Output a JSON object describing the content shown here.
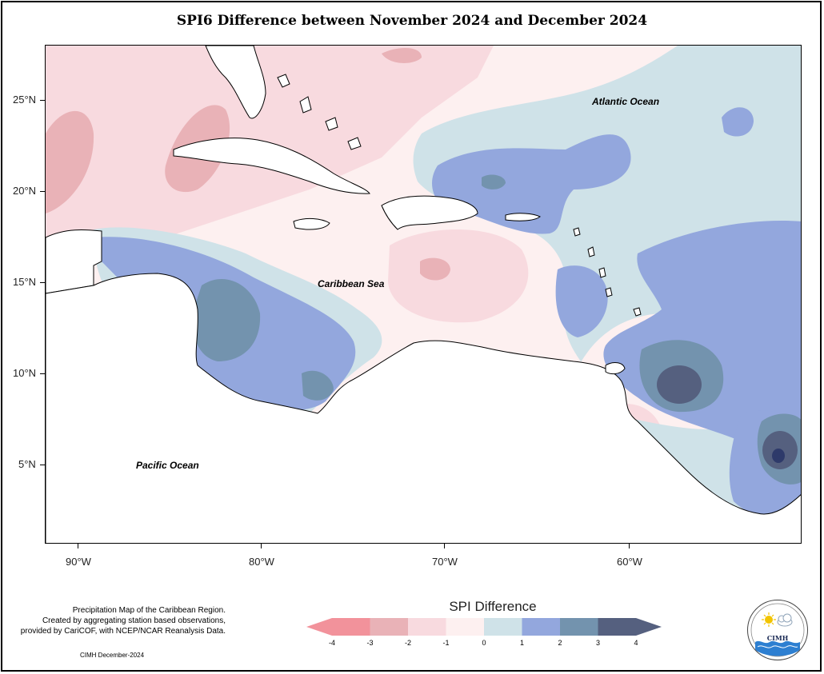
{
  "title": "SPI6 Difference between November 2024 and December 2024",
  "map": {
    "y_ticks": [
      "25°N",
      "20°N",
      "15°N",
      "10°N",
      "5°N"
    ],
    "x_ticks": [
      "90°W",
      "80°W",
      "70°W",
      "60°W"
    ],
    "ocean_labels": {
      "atlantic": "Atlantic Ocean",
      "caribbean": "Caribbean Sea",
      "pacific": "Pacific Ocean"
    },
    "land_color": "#ffffff",
    "coastline_color": "#000000"
  },
  "legend": {
    "title": "SPI Difference",
    "ticks": [
      "-4",
      "-3",
      "-2",
      "-1",
      "0",
      "1",
      "2",
      "3",
      "4"
    ],
    "colors": [
      "#f2929b",
      "#e9b2b7",
      "#f8dadf",
      "#fdf0f0",
      "#cfe2e8",
      "#93a7dd",
      "#7393ae",
      "#55607f"
    ]
  },
  "source_note": {
    "line1": "Precipitation Map of the Caribbean Region.",
    "line2": "Created by aggregating station based observations,",
    "line3": "provided by CariCOF, with NCEP/NCAR Reanalysis Data."
  },
  "credit": "CIMH December-2024",
  "logo": {
    "text": "CIMH",
    "ring_text": "Caribbean Institute for Meteorology and Hydrology"
  }
}
